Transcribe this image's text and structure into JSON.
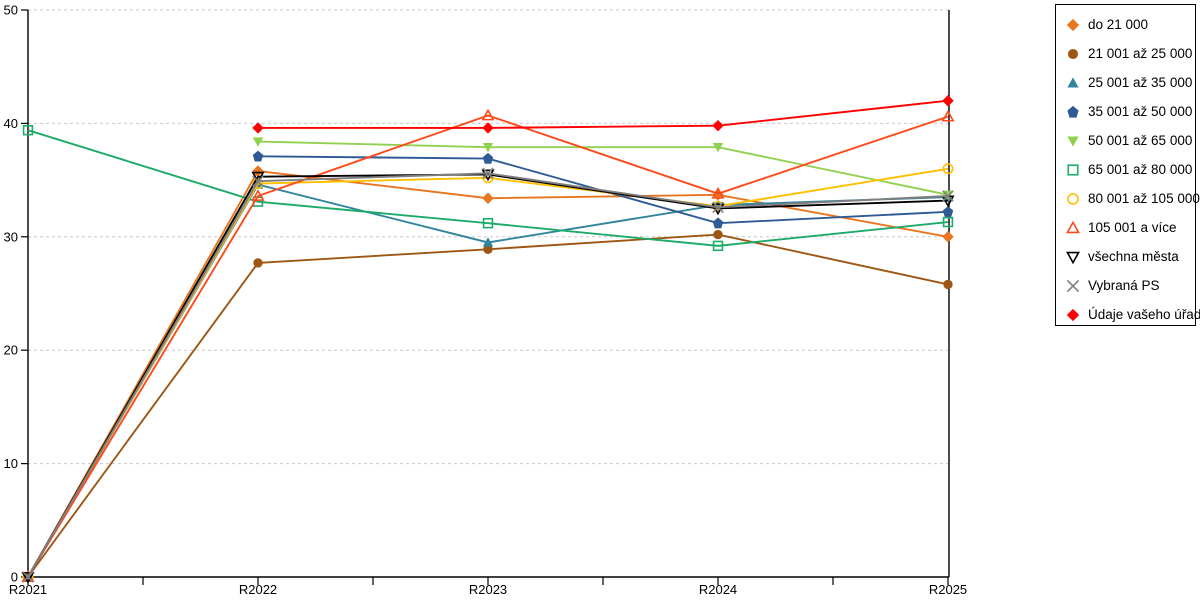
{
  "chart_data": {
    "type": "line",
    "title": "",
    "xlabel": "",
    "ylabel": "",
    "x_categories": [
      "R2021",
      "R2022",
      "R2023",
      "R2024",
      "R2025"
    ],
    "y_ticks": [
      0,
      10,
      20,
      30,
      40,
      50
    ],
    "ylim": [
      0,
      50
    ],
    "grid": "horizontal-dashed",
    "gridline_color": "#c9c9c9",
    "axis_color": "#000000",
    "legend_position": "right",
    "legend_border_color": "#000000",
    "series": [
      {
        "name": "do 21 000",
        "color": "#E8751F",
        "marker": "diamond",
        "style": "filled",
        "values": [
          0,
          35.8,
          33.4,
          33.7,
          30.0
        ]
      },
      {
        "name": "21 001 až 25 000",
        "color": "#9E5614",
        "marker": "circle",
        "style": "filled",
        "values": [
          0,
          27.7,
          28.9,
          30.2,
          25.8
        ]
      },
      {
        "name": "25 001 až 35 000",
        "color": "#31859C",
        "marker": "triangle-up",
        "style": "filled",
        "values": [
          0,
          34.6,
          29.5,
          32.8,
          33.5
        ]
      },
      {
        "name": "35 001 až 50 000",
        "color": "#2F5B95",
        "marker": "pentagon",
        "style": "filled",
        "values": [
          null,
          37.1,
          36.9,
          31.2,
          32.2
        ]
      },
      {
        "name": "50 001 až 65 000",
        "color": "#92D050",
        "marker": "triangle-down",
        "style": "filled",
        "values": [
          null,
          38.4,
          37.9,
          37.9,
          33.7
        ]
      },
      {
        "name": "65 001 až 80 000",
        "color": "#1CAB68",
        "marker": "square",
        "style": "hollow",
        "values": [
          39.4,
          33.1,
          31.2,
          29.2,
          31.3
        ]
      },
      {
        "name": "80 001 až 105 000",
        "color": "#FFC000",
        "marker": "circle",
        "style": "hollow",
        "values": [
          0,
          34.7,
          35.2,
          32.7,
          36.0
        ]
      },
      {
        "name": "105 001 a více",
        "color": "#FF4A1C",
        "marker": "triangle-up",
        "style": "hollow",
        "values": [
          0,
          33.6,
          40.7,
          33.8,
          40.6
        ]
      },
      {
        "name": "všechna města",
        "color": "#000000",
        "marker": "triangle-down",
        "style": "hollow",
        "values": [
          0,
          35.3,
          35.5,
          32.5,
          33.2
        ]
      },
      {
        "name": "Vybraná PS",
        "color": "#7F7F7F",
        "marker": "x",
        "style": "hollow",
        "values": [
          0,
          34.9,
          35.6,
          32.6,
          33.6
        ]
      },
      {
        "name": "Údaje vašeho úřadu",
        "color": "#FF0000",
        "marker": "diamond",
        "style": "filled",
        "values": [
          null,
          39.6,
          39.6,
          39.8,
          42.0
        ]
      }
    ]
  }
}
